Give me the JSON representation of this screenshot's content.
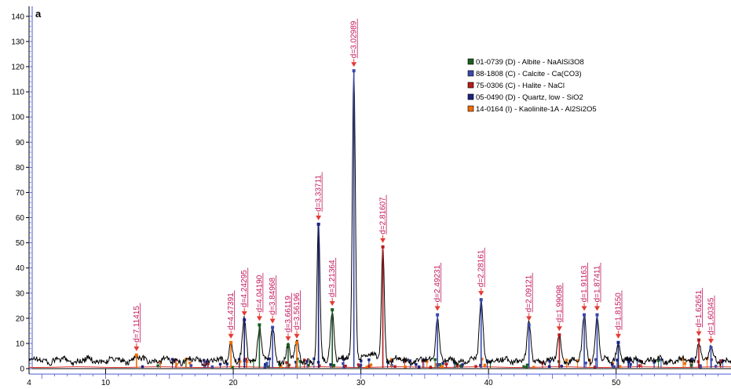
{
  "chart_data": {
    "type": "line",
    "panel_label": "a",
    "title": "",
    "xlabel": "",
    "ylabel": "",
    "xlim": [
      4,
      59
    ],
    "ylim": [
      0,
      144
    ],
    "x_ticks": [
      4,
      10,
      20,
      30,
      40,
      50
    ],
    "y_ticks": [
      0,
      10,
      20,
      30,
      40,
      50,
      60,
      70,
      80,
      90,
      100,
      110,
      120,
      130,
      140
    ],
    "grid": false,
    "legend_position": "top-right",
    "colors": {
      "trace": "#000000",
      "peak_marker": "#e53935",
      "peak_label": "#c2185b",
      "baseline": "#e53935"
    },
    "legend": [
      {
        "label": "01-0739 (D) - Albite - NaAlSi3O8",
        "color": "#1b5e20"
      },
      {
        "label": "88-1808 (C) - Calcite - Ca(CO3)",
        "color": "#3949ab"
      },
      {
        "label": "75-0306 (C) - Halite - NaCl",
        "color": "#b71c1c"
      },
      {
        "label": "05-0490 (D) - Quartz, low - SiO2",
        "color": "#1a237e"
      },
      {
        "label": "14-0164 (I) - Kaolinite-1A - Al2Si2O5",
        "color": "#ef6c00"
      }
    ],
    "peaks": [
      {
        "x": 12.42,
        "y": 6,
        "label": "d=7.11415",
        "color": "#ef6c00"
      },
      {
        "x": 19.82,
        "y": 11,
        "label": "d=4.47391",
        "color": "#ef6c00"
      },
      {
        "x": 20.87,
        "y": 20,
        "label": "d=4.24295",
        "color": "#1a237e"
      },
      {
        "x": 22.05,
        "y": 18,
        "label": "d=4.04190",
        "color": "#1b5e20"
      },
      {
        "x": 23.08,
        "y": 17,
        "label": "d=3.84968",
        "color": "#3949ab"
      },
      {
        "x": 24.3,
        "y": 10,
        "label": "d=3.66119",
        "color": "#1b5e20"
      },
      {
        "x": 24.98,
        "y": 11,
        "label": "d=3.56196",
        "color": "#ef6c00"
      },
      {
        "x": 26.68,
        "y": 58,
        "label": "d=3.33711",
        "color": "#1a237e"
      },
      {
        "x": 27.76,
        "y": 24,
        "label": "d=3.21364",
        "color": "#1b5e20"
      },
      {
        "x": 29.45,
        "y": 119,
        "label": "d=3.02989",
        "color": "#3949ab"
      },
      {
        "x": 31.72,
        "y": 49,
        "label": "d=2.81607",
        "color": "#b71c1c"
      },
      {
        "x": 36.0,
        "y": 22,
        "label": "d=2.49231",
        "color": "#3949ab"
      },
      {
        "x": 39.42,
        "y": 28,
        "label": "d=2.28161",
        "color": "#3949ab"
      },
      {
        "x": 43.17,
        "y": 18,
        "label": "d=2.09121",
        "color": "#3949ab"
      },
      {
        "x": 45.55,
        "y": 14,
        "label": "d=1.99098",
        "color": "#b71c1c"
      },
      {
        "x": 47.5,
        "y": 22,
        "label": "d=1.91163",
        "color": "#3949ab"
      },
      {
        "x": 48.51,
        "y": 22,
        "label": "d=1.87411",
        "color": "#3949ab"
      },
      {
        "x": 50.17,
        "y": 11,
        "label": "d=1.81550",
        "color": "#1a237e"
      },
      {
        "x": 56.48,
        "y": 12,
        "label": "d=1.62651",
        "color": "#b71c1c"
      },
      {
        "x": 57.43,
        "y": 9,
        "label": "d=1.60345",
        "color": "#3949ab"
      }
    ]
  }
}
